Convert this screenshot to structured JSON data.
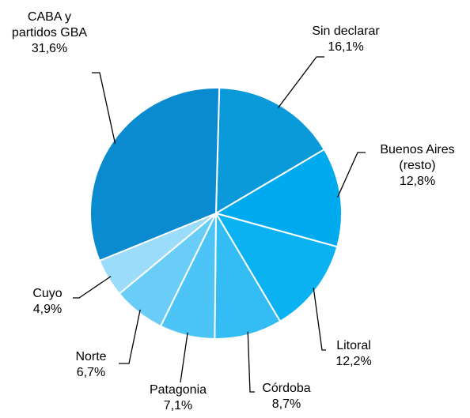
{
  "chart_data": {
    "type": "pie",
    "categories": [
      "Sin declarar",
      "Buenos Aires (resto)",
      "Litoral",
      "Córdoba",
      "Patagonia",
      "Norte",
      "Cuyo",
      "CABA y partidos GBA"
    ],
    "values": [
      16.1,
      12.8,
      12.2,
      8.7,
      7.1,
      6.7,
      4.9,
      31.6
    ],
    "value_labels": [
      "16,1%",
      "12,8%",
      "12,2%",
      "8,7%",
      "7,1%",
      "6,7%",
      "4,9%",
      "31,6%"
    ],
    "colors": [
      "#0a9ada",
      "#00aaee",
      "#0bb2f2",
      "#33bdf4",
      "#4cc4f6",
      "#69cdf8",
      "#9adcfa",
      "#0a8bd0"
    ]
  }
}
